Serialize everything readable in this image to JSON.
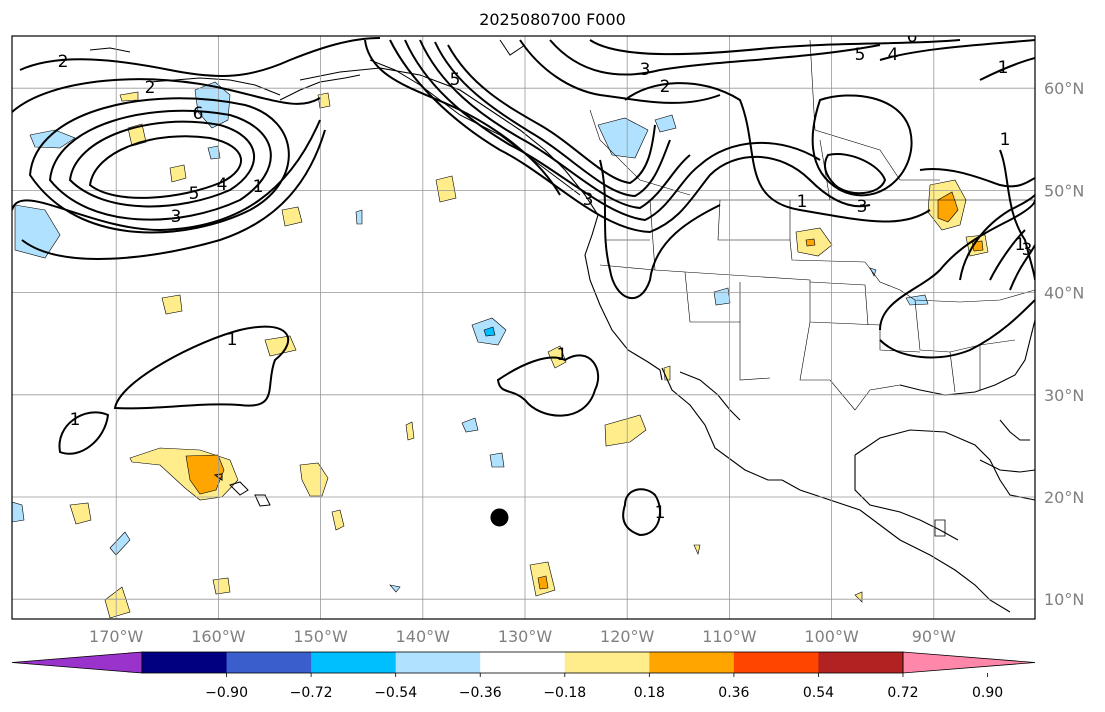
{
  "title": "2025080700 F000",
  "lon_labels": [
    "170°W",
    "160°W",
    "150°W",
    "140°W",
    "130°W",
    "120°W",
    "110°W",
    "100°W",
    "90°W"
  ],
  "lat_labels": [
    "60°N",
    "50°N",
    "40°N",
    "30°N",
    "20°N",
    "10°N"
  ],
  "colorbar": {
    "ticks": [
      "−0.90",
      "−0.72",
      "−0.54",
      "−0.36",
      "−0.18",
      "0.18",
      "0.36",
      "0.54",
      "0.72",
      "0.90"
    ],
    "colors": [
      "#9933cc",
      "#000080",
      "#3a5fcd",
      "#00bfff",
      "#b0e2ff",
      "#ffffff",
      "#ffec8b",
      "#ffa500",
      "#ff4500",
      "#b22222",
      "#ff88aa"
    ]
  },
  "contour_labels": [
    "2",
    "2",
    "3",
    "6",
    "5",
    "4",
    "1",
    "3",
    "5",
    "3",
    "2",
    "1",
    "1",
    "1",
    "1",
    "1",
    "1",
    "3",
    "5",
    "4",
    "6",
    "1",
    "3",
    "1"
  ],
  "marker": {
    "lon": -132.5,
    "lat": 18
  }
}
